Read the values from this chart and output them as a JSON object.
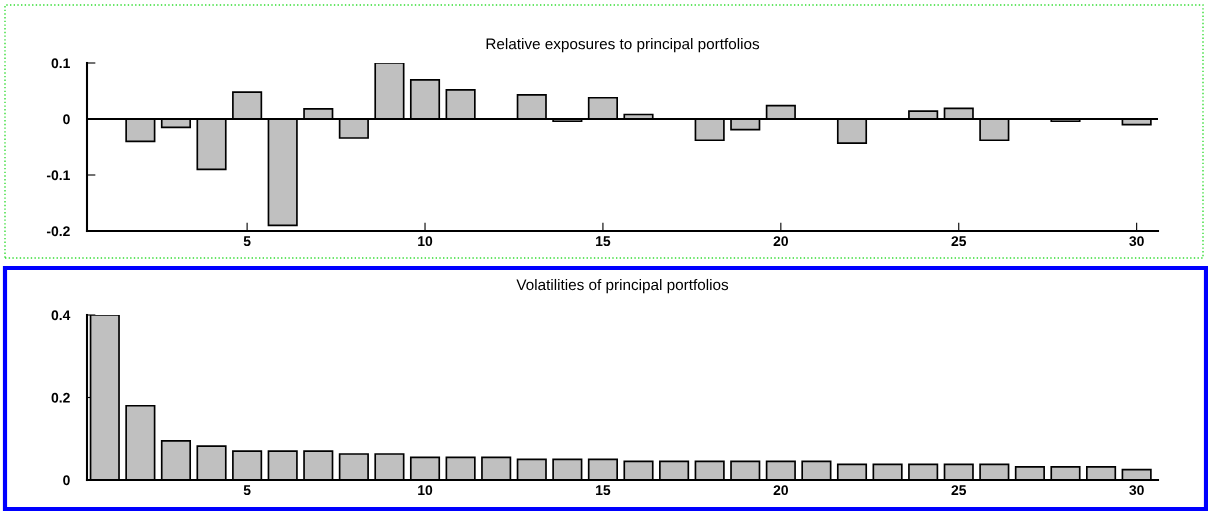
{
  "chart_data": [
    {
      "type": "bar",
      "title": "Relative exposures to principal portfolios",
      "x": [
        2,
        3,
        4,
        5,
        6,
        7,
        8,
        9,
        10,
        11,
        12,
        13,
        14,
        15,
        16,
        17,
        18,
        19,
        20,
        21,
        22,
        23,
        24,
        25,
        26,
        27,
        28,
        29,
        30
      ],
      "series": [
        {
          "color": "#c0c0c0",
          "values": [
            -0.04,
            -0.015,
            -0.09,
            0.048,
            -0.19,
            0.018,
            -0.034,
            0.1,
            0.07,
            0.052,
            null,
            0.043,
            -0.004,
            0.038,
            0.008,
            null,
            -0.038,
            -0.019,
            0.024,
            null,
            -0.043,
            null,
            0.014,
            0.019,
            -0.038,
            null,
            -0.004,
            null,
            -0.01
          ]
        }
      ],
      "xlim": [
        0.5,
        30.6
      ],
      "xticks": [
        5,
        10,
        15,
        20,
        25,
        30
      ],
      "ylim": [
        -0.2,
        0.1
      ],
      "yticks": [
        0.1,
        0,
        -0.1,
        -0.2
      ],
      "ref_lines": [
        {
          "axis": "y",
          "value": 0,
          "color": "#000000"
        }
      ],
      "grid": false
    },
    {
      "type": "bar",
      "title": "Volatilities of principal portfolios",
      "x": [
        1,
        2,
        3,
        4,
        5,
        6,
        7,
        8,
        9,
        10,
        11,
        12,
        13,
        14,
        15,
        16,
        17,
        18,
        19,
        20,
        21,
        22,
        23,
        24,
        25,
        26,
        27,
        28,
        29,
        30
      ],
      "series": [
        {
          "color": "#c0c0c0",
          "values": [
            0.4,
            0.18,
            0.095,
            0.082,
            0.07,
            0.07,
            0.07,
            0.063,
            0.063,
            0.055,
            0.055,
            0.055,
            0.05,
            0.05,
            0.05,
            0.045,
            0.045,
            0.045,
            0.045,
            0.045,
            0.045,
            0.038,
            0.038,
            0.038,
            0.038,
            0.038,
            0.032,
            0.032,
            0.032,
            0.025
          ]
        }
      ],
      "xlim": [
        0.5,
        30.6
      ],
      "xticks": [
        5,
        10,
        15,
        20,
        25,
        30
      ],
      "ylim": [
        0,
        0.4
      ],
      "yticks": [
        0,
        0.2,
        0.4
      ],
      "grid": false
    }
  ]
}
